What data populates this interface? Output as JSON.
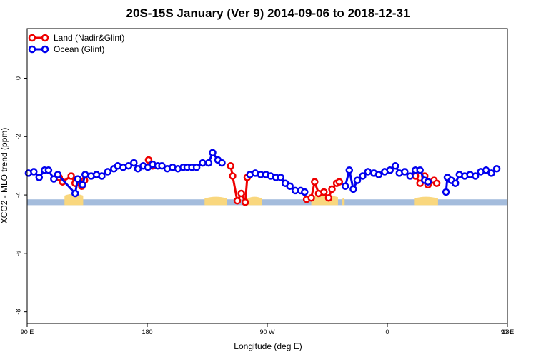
{
  "chart_data": {
    "type": "line",
    "title": "20S-15S January (Ver 9)   2014-09-06 to 2018-12-31",
    "xlabel": "Longitude (deg E)",
    "ylabel": "XCO2 - MLO trend (ppm)",
    "xlim": [
      90,
      450
    ],
    "ylim": [
      -8.4,
      1.7
    ],
    "x_ticks": [
      90,
      180,
      270,
      360,
      450,
      540
    ],
    "x_tick_labels": [
      "90 E",
      "180",
      "90 W",
      "0",
      "90 E",
      "180"
    ],
    "y_ticks": [
      -8,
      -6,
      -4,
      -2,
      0
    ],
    "y_tick_labels": [
      "-8",
      "-6",
      "-4",
      "-2",
      "0"
    ],
    "legend_position": "top-left",
    "land_mask_color": "#f9d77e",
    "ocean_mask_color": "#a4bcdc",
    "land_band_y_range": [
      -4.35,
      -4.15
    ],
    "land_segments": [
      [
        118,
        132,
        -3.95
      ],
      [
        223,
        240,
        -4.05
      ],
      [
        255,
        266,
        -4.05
      ],
      [
        303,
        323,
        -4.0
      ],
      [
        326,
        328,
        -4.1
      ],
      [
        380,
        398,
        -4.05
      ]
    ],
    "series": [
      {
        "name": "Land (Nadir&Glint)",
        "color": "#ee0000",
        "segments": [
          [
            [
              114,
              -3.4
            ],
            [
              116.5,
              -3.55
            ],
            [
              123,
              -3.35
            ],
            [
              126,
              -3.6
            ],
            [
              131,
              -3.7
            ],
            [
              133,
              -3.5
            ]
          ],
          [
            [
              181,
              -2.8
            ],
            [
              184,
              -3.0
            ]
          ],
          [
            [
              242.5,
              -3.0
            ],
            [
              244,
              -3.35
            ],
            [
              247.5,
              -4.2
            ],
            [
              250.5,
              -3.95
            ],
            [
              253.5,
              -4.25
            ],
            [
              255,
              -3.4
            ]
          ],
          [
            [
              299.5,
              -4.15
            ],
            [
              303,
              -4.1
            ],
            [
              305.5,
              -3.55
            ],
            [
              308.5,
              -3.95
            ],
            [
              312.5,
              -3.9
            ],
            [
              316,
              -4.1
            ],
            [
              318.5,
              -3.8
            ],
            [
              322,
              -3.6
            ],
            [
              324,
              -3.55
            ]
          ],
          [
            [
              381,
              -3.35
            ],
            [
              384.5,
              -3.6
            ],
            [
              388,
              -3.35
            ],
            [
              390.5,
              -3.65
            ],
            [
              395,
              -3.5
            ],
            [
              397,
              -3.6
            ]
          ]
        ]
      },
      {
        "name": "Ocean (Glint)",
        "color": "#0000ee",
        "segments": [
          [
            [
              91,
              -3.25
            ],
            [
              95,
              -3.2
            ],
            [
              99,
              -3.4
            ],
            [
              103,
              -3.15
            ],
            [
              106,
              -3.15
            ],
            [
              110,
              -3.45
            ],
            [
              113,
              -3.3
            ],
            [
              126,
              -3.95
            ],
            [
              128,
              -3.45
            ],
            [
              131.5,
              -3.65
            ],
            [
              133.5,
              -3.3
            ],
            [
              138,
              -3.35
            ],
            [
              142,
              -3.3
            ],
            [
              146,
              -3.35
            ],
            [
              150.5,
              -3.2
            ],
            [
              155,
              -3.1
            ],
            [
              158,
              -3.0
            ],
            [
              162,
              -3.05
            ],
            [
              166,
              -3.0
            ],
            [
              170,
              -2.9
            ],
            [
              173,
              -3.1
            ],
            [
              177,
              -3.0
            ],
            [
              180.5,
              -3.05
            ],
            [
              184,
              -2.95
            ],
            [
              188,
              -3.0
            ],
            [
              191,
              -3.0
            ],
            [
              195,
              -3.1
            ],
            [
              199,
              -3.05
            ],
            [
              203,
              -3.1
            ],
            [
              207,
              -3.05
            ],
            [
              210,
              -3.05
            ],
            [
              213.5,
              -3.05
            ],
            [
              217,
              -3.05
            ],
            [
              221.5,
              -2.9
            ],
            [
              226,
              -2.9
            ],
            [
              229,
              -2.55
            ],
            [
              233,
              -2.8
            ],
            [
              236,
              -2.9
            ]
          ],
          [
            [
              257,
              -3.3
            ],
            [
              261,
              -3.25
            ],
            [
              265,
              -3.3
            ],
            [
              269,
              -3.3
            ],
            [
              272.5,
              -3.35
            ],
            [
              276.5,
              -3.4
            ],
            [
              280,
              -3.4
            ],
            [
              283.5,
              -3.6
            ],
            [
              287,
              -3.7
            ],
            [
              291,
              -3.85
            ],
            [
              295,
              -3.85
            ],
            [
              298,
              -3.9
            ]
          ],
          [
            [
              328.5,
              -3.7
            ],
            [
              331.5,
              -3.15
            ],
            [
              334.5,
              -3.8
            ],
            [
              337.5,
              -3.5
            ],
            [
              341.5,
              -3.35
            ],
            [
              345.5,
              -3.2
            ],
            [
              350,
              -3.25
            ],
            [
              353.5,
              -3.3
            ],
            [
              358,
              -3.2
            ],
            [
              362,
              -3.15
            ],
            [
              366,
              -3.0
            ],
            [
              369,
              -3.25
            ],
            [
              373,
              -3.2
            ],
            [
              377,
              -3.35
            ],
            [
              381,
              -3.15
            ],
            [
              384.5,
              -3.15
            ],
            [
              388,
              -3.5
            ],
            [
              390.5,
              -3.55
            ]
          ],
          [
            [
              404,
              -3.9
            ],
            [
              405,
              -3.4
            ],
            [
              408,
              -3.5
            ],
            [
              411,
              -3.6
            ],
            [
              414,
              -3.3
            ],
            [
              418,
              -3.35
            ],
            [
              422,
              -3.3
            ],
            [
              426,
              -3.35
            ],
            [
              430,
              -3.2
            ],
            [
              434,
              -3.15
            ],
            [
              438,
              -3.25
            ],
            [
              442,
              -3.1
            ]
          ]
        ]
      }
    ]
  }
}
